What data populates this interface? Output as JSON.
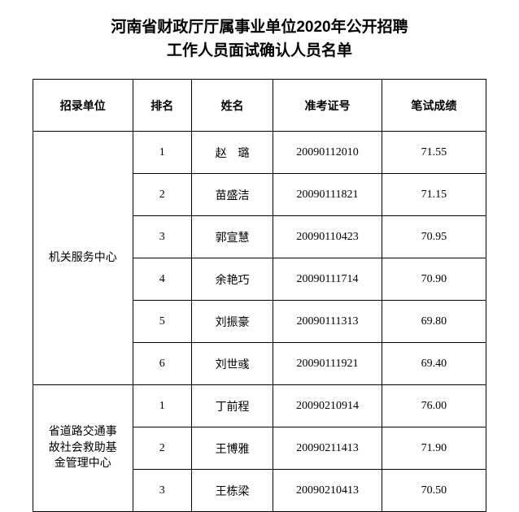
{
  "title_line1": "河南省财政厅厅属事业单位2020年公开招聘",
  "title_line2": "工作人员面试确认人员名单",
  "headers": {
    "unit": "招录单位",
    "rank": "排名",
    "name": "姓名",
    "ticket": "准考证号",
    "score": "笔试成绩"
  },
  "group1": {
    "unit": "机关服务中心",
    "rows": [
      {
        "rank": "1",
        "name": "赵　璐",
        "ticket": "20090112010",
        "score": "71.55"
      },
      {
        "rank": "2",
        "name": "苗盛洁",
        "ticket": "20090111821",
        "score": "71.15"
      },
      {
        "rank": "3",
        "name": "郭宣慧",
        "ticket": "20090110423",
        "score": "70.95"
      },
      {
        "rank": "4",
        "name": "余艳巧",
        "ticket": "20090111714",
        "score": "70.90"
      },
      {
        "rank": "5",
        "name": "刘振豪",
        "ticket": "20090111313",
        "score": "69.80"
      },
      {
        "rank": "6",
        "name": "刘世彧",
        "ticket": "20090111921",
        "score": "69.40"
      }
    ]
  },
  "group2": {
    "unit_l1": "省道路交通事",
    "unit_l2": "故社会救助基",
    "unit_l3": "金管理中心",
    "rows": [
      {
        "rank": "1",
        "name": "丁前程",
        "ticket": "20090210914",
        "score": "76.00"
      },
      {
        "rank": "2",
        "name": "王博雅",
        "ticket": "20090211413",
        "score": "71.90"
      },
      {
        "rank": "3",
        "name": "王栋梁",
        "ticket": "20090210413",
        "score": "70.50"
      }
    ]
  }
}
